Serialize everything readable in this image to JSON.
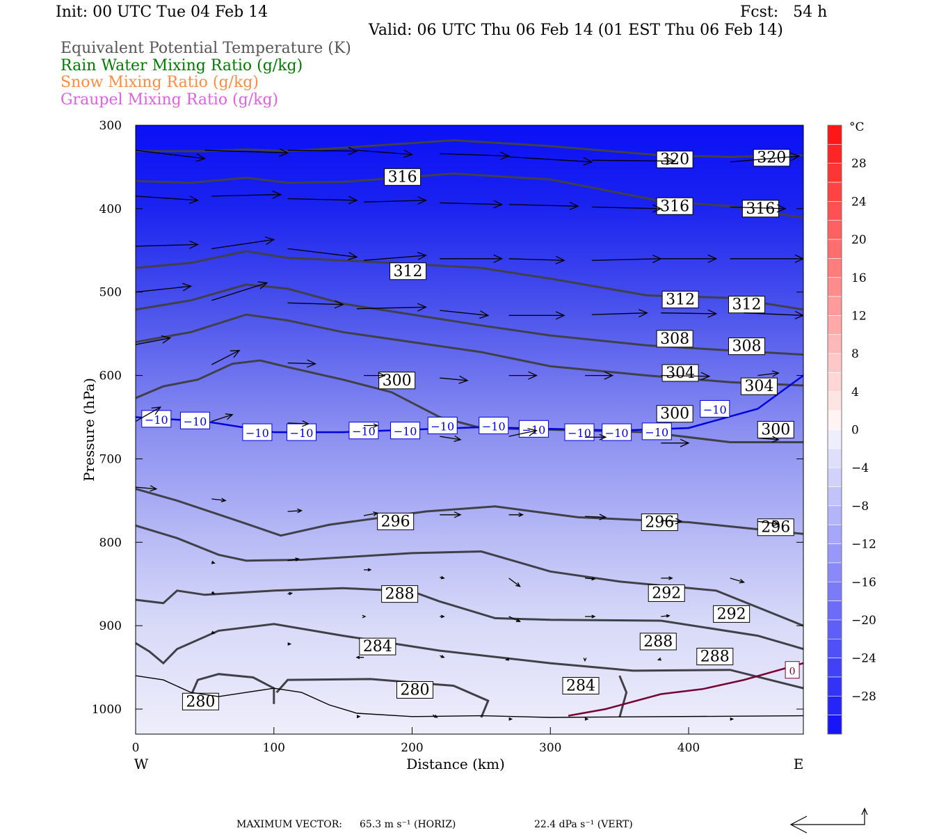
{
  "header": {
    "init": "Init: 00 UTC Tue 04 Feb 14",
    "fcst": "Fcst:   54 h",
    "valid": "Valid: 06 UTC Thu 06 Feb 14 (01 EST Thu 06 Feb 14)"
  },
  "legend": [
    {
      "label": "Equivalent Potential Temperature (K)",
      "color": "#555555"
    },
    {
      "label": "Rain Water Mixing Ratio (g/kg)",
      "color": "#007a00"
    },
    {
      "label": "Snow Mixing Ratio (g/kg)",
      "color": "#ff8c45"
    },
    {
      "label": "Graupel Mixing Ratio (g/kg)",
      "color": "#e060e0"
    }
  ],
  "footer": {
    "max_vector_label": "MAXIMUM VECTOR:",
    "horiz_value": "65.3 m s⁻¹ (HORIZ)",
    "vert_value": "22.4 dPa s⁻¹ (VERT)"
  },
  "chart_data": {
    "type": "contour",
    "xlabel": "Distance (km)",
    "ylabel": "Pressure (hPa)",
    "x_ticks": [
      0,
      100,
      200,
      300,
      400
    ],
    "xlim": [
      0,
      483
    ],
    "y_ticks": [
      300,
      400,
      500,
      600,
      700,
      800,
      900,
      1000
    ],
    "ylim": [
      1030,
      300
    ],
    "y_scale": "linear",
    "west_label": "W",
    "east_label": "E",
    "colorbar": {
      "unit": "°C",
      "tick_labels": [
        "28",
        "24",
        "20",
        "16",
        "12",
        "8",
        "4",
        "0",
        "−4",
        "−8",
        "−12",
        "−16",
        "−20",
        "−24",
        "−28"
      ],
      "tick_values": [
        28,
        24,
        20,
        16,
        12,
        8,
        4,
        0,
        -4,
        -8,
        -12,
        -16,
        -20,
        -24,
        -28
      ],
      "min": -32,
      "max": 32,
      "step": 2
    },
    "theta_e_contours": [
      {
        "level": 320,
        "points": [
          [
            0,
            331
          ],
          [
            50,
            331
          ],
          [
            80,
            329
          ],
          [
            110,
            331
          ],
          [
            150,
            327
          ],
          [
            230,
            318
          ],
          [
            300,
            325
          ],
          [
            380,
            336
          ],
          [
            430,
            338
          ],
          [
            483,
            336
          ]
        ],
        "labels": [
          {
            "text": "320",
            "x": 390,
            "p": 341
          },
          {
            "text": "320",
            "x": 460,
            "p": 339
          }
        ]
      },
      {
        "level": 316,
        "points": [
          [
            0,
            367
          ],
          [
            40,
            369
          ],
          [
            80,
            363
          ],
          [
            110,
            369
          ],
          [
            150,
            368
          ],
          [
            230,
            358
          ],
          [
            300,
            365
          ],
          [
            380,
            391
          ],
          [
            430,
            397
          ],
          [
            483,
            411
          ]
        ],
        "labels": [
          {
            "text": "316",
            "x": 193,
            "p": 362
          },
          {
            "text": "316",
            "x": 390,
            "p": 397
          },
          {
            "text": "316",
            "x": 452,
            "p": 400
          }
        ]
      },
      {
        "level": 312,
        "points": [
          [
            0,
            471
          ],
          [
            40,
            465
          ],
          [
            80,
            451
          ],
          [
            110,
            459
          ],
          [
            150,
            462
          ],
          [
            250,
            471
          ],
          [
            300,
            484
          ],
          [
            370,
            504
          ],
          [
            430,
            507
          ],
          [
            483,
            521
          ]
        ],
        "labels": [
          {
            "text": "312",
            "x": 197,
            "p": 475
          },
          {
            "text": "312",
            "x": 394,
            "p": 509
          },
          {
            "text": "312",
            "x": 442,
            "p": 515
          }
        ]
      },
      {
        "level": 308,
        "points": [
          [
            0,
            521
          ],
          [
            40,
            510
          ],
          [
            80,
            491
          ],
          [
            110,
            496
          ],
          [
            150,
            514
          ],
          [
            250,
            540
          ],
          [
            300,
            552
          ],
          [
            370,
            564
          ],
          [
            430,
            570
          ],
          [
            483,
            575
          ]
        ],
        "labels": [
          {
            "text": "308",
            "x": 390,
            "p": 556
          },
          {
            "text": "308",
            "x": 442,
            "p": 565
          }
        ]
      },
      {
        "level": 304,
        "points": [
          [
            0,
            560
          ],
          [
            40,
            548
          ],
          [
            80,
            527
          ],
          [
            110,
            534
          ],
          [
            150,
            548
          ],
          [
            250,
            572
          ],
          [
            300,
            589
          ],
          [
            370,
            600
          ],
          [
            430,
            608
          ],
          [
            483,
            612
          ]
        ],
        "labels": [
          {
            "text": "304",
            "x": 394,
            "p": 597
          },
          {
            "text": "304",
            "x": 451,
            "p": 613
          }
        ]
      },
      {
        "level": 300,
        "points": [
          [
            0,
            627
          ],
          [
            20,
            613
          ],
          [
            45,
            605
          ],
          [
            70,
            586
          ],
          [
            90,
            582
          ],
          [
            110,
            590
          ],
          [
            150,
            605
          ],
          [
            185,
            620
          ],
          [
            220,
            650
          ],
          [
            250,
            663
          ],
          [
            300,
            665
          ],
          [
            370,
            668
          ],
          [
            430,
            680
          ],
          [
            483,
            680
          ]
        ],
        "labels": [
          {
            "text": "300",
            "x": 189,
            "p": 606
          },
          {
            "text": "300",
            "x": 390,
            "p": 646
          },
          {
            "text": "300",
            "x": 463,
            "p": 665
          }
        ]
      },
      {
        "level": 296,
        "points": [
          [
            0,
            736
          ],
          [
            30,
            750
          ],
          [
            75,
            775
          ],
          [
            105,
            792
          ],
          [
            140,
            779
          ],
          [
            210,
            763
          ],
          [
            260,
            757
          ],
          [
            320,
            770
          ],
          [
            400,
            776
          ],
          [
            483,
            790
          ]
        ],
        "labels": [
          {
            "text": "296",
            "x": 188,
            "p": 775
          },
          {
            "text": "296",
            "x": 379,
            "p": 776
          },
          {
            "text": "296",
            "x": 463,
            "p": 782
          }
        ]
      },
      {
        "level": 292,
        "points": [
          [
            0,
            780
          ],
          [
            30,
            795
          ],
          [
            60,
            815
          ],
          [
            80,
            822
          ],
          [
            120,
            821
          ],
          [
            200,
            813
          ],
          [
            250,
            811
          ],
          [
            300,
            835
          ],
          [
            350,
            847
          ],
          [
            420,
            858
          ],
          [
            483,
            900
          ]
        ],
        "labels": [
          {
            "text": "292",
            "x": 384,
            "p": 861
          },
          {
            "text": "292",
            "x": 431,
            "p": 886
          }
        ]
      },
      {
        "level": 288,
        "points": [
          [
            0,
            869
          ],
          [
            20,
            873
          ],
          [
            30,
            858
          ],
          [
            50,
            863
          ],
          [
            100,
            858
          ],
          [
            150,
            855
          ],
          [
            200,
            859
          ],
          [
            220,
            871
          ],
          [
            260,
            891
          ],
          [
            300,
            893
          ],
          [
            380,
            894
          ],
          [
            450,
            912
          ],
          [
            483,
            928
          ]
        ],
        "labels": [
          {
            "text": "288",
            "x": 191,
            "p": 862
          },
          {
            "text": "288",
            "x": 378,
            "p": 919
          },
          {
            "text": "288",
            "x": 419,
            "p": 937
          }
        ]
      },
      {
        "level": 284,
        "points": [
          [
            0,
            921
          ],
          [
            10,
            931
          ],
          [
            20,
            945
          ],
          [
            30,
            928
          ],
          [
            60,
            906
          ],
          [
            100,
            898
          ],
          [
            150,
            912
          ],
          [
            220,
            930
          ],
          [
            300,
            945
          ],
          [
            360,
            954
          ],
          [
            430,
            953
          ],
          [
            483,
            975
          ]
        ],
        "labels": [
          {
            "text": "284",
            "x": 175,
            "p": 925
          },
          {
            "text": "284",
            "x": 322,
            "p": 972
          }
        ]
      },
      {
        "level": 280,
        "points": [
          [
            40,
            984
          ],
          [
            45,
            965
          ],
          [
            60,
            958
          ],
          [
            85,
            962
          ],
          [
            100,
            975
          ],
          [
            100,
            994
          ]
        ],
        "labels": [
          {
            "text": "280",
            "x": 47,
            "p": 991
          }
        ]
      },
      {
        "level": 280,
        "points": [
          [
            102,
            980
          ],
          [
            110,
            965
          ],
          [
            170,
            964
          ],
          [
            230,
            972
          ],
          [
            255,
            990
          ],
          [
            250,
            1010
          ]
        ],
        "labels": [
          {
            "text": "280",
            "x": 202,
            "p": 977
          }
        ]
      },
      {
        "level": 280,
        "points": [
          [
            350,
            960
          ],
          [
            355,
            980
          ],
          [
            350,
            1010
          ]
        ],
        "labels": []
      }
    ],
    "isotherms": [
      {
        "level": -10,
        "color": "#0000dd",
        "points": [
          [
            0,
            650
          ],
          [
            50,
            655
          ],
          [
            100,
            668
          ],
          [
            150,
            668
          ],
          [
            250,
            662
          ],
          [
            350,
            666
          ],
          [
            400,
            663
          ],
          [
            450,
            640
          ],
          [
            483,
            600
          ]
        ],
        "labels": [
          {
            "text": "−10",
            "x": 15,
            "p": 652
          },
          {
            "text": "−10",
            "x": 43,
            "p": 654
          },
          {
            "text": "−10",
            "x": 88,
            "p": 668
          },
          {
            "text": "−10",
            "x": 120,
            "p": 668
          },
          {
            "text": "−10",
            "x": 165,
            "p": 666
          },
          {
            "text": "−10",
            "x": 195,
            "p": 666
          },
          {
            "text": "−10",
            "x": 222,
            "p": 660
          },
          {
            "text": "−10",
            "x": 259,
            "p": 660
          },
          {
            "text": "−10",
            "x": 288,
            "p": 664
          },
          {
            "text": "−10",
            "x": 321,
            "p": 668
          },
          {
            "text": "−10",
            "x": 348,
            "p": 668
          },
          {
            "text": "−10",
            "x": 377,
            "p": 667
          },
          {
            "text": "−10",
            "x": 419,
            "p": 640
          }
        ]
      },
      {
        "level": 0,
        "color": "#770033",
        "points": [
          [
            313,
            1008
          ],
          [
            340,
            1000
          ],
          [
            380,
            982
          ],
          [
            410,
            976
          ],
          [
            440,
            965
          ],
          [
            483,
            945
          ]
        ],
        "labels": [
          {
            "text": "0",
            "x": 475,
            "p": 953
          }
        ]
      }
    ],
    "wind_vectors_description": "cross-section wind vectors (horizontal & vertical components)",
    "max_vector": {
      "horiz": 65.3,
      "horiz_unit": "m s-1",
      "vert": 22.4,
      "vert_unit": "dPa s-1"
    }
  }
}
